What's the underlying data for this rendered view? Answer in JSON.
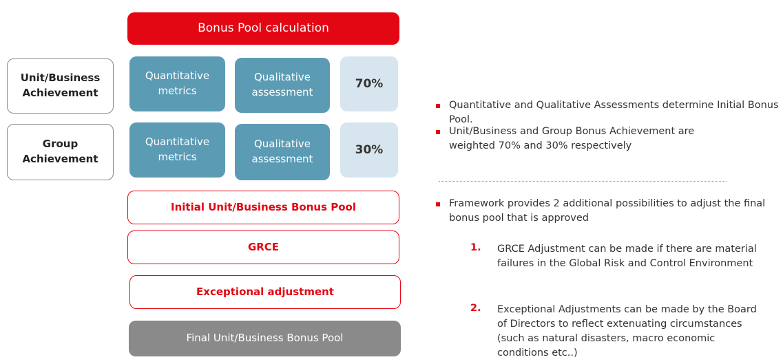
{
  "header": {
    "title": "Bonus Pool calculation"
  },
  "rows": [
    {
      "label": "Unit/Business Achievement",
      "quantitative": "Quantitative metrics",
      "qualitative": "Qualitative assessment",
      "weight": "70%"
    },
    {
      "label": "Group Achievement",
      "quantitative": "Quantitative metrics",
      "qualitative": "Qualitative assessment",
      "weight": "30%"
    }
  ],
  "steps": [
    "Initial Unit/Business Bonus Pool",
    "GRCE",
    "Exceptional adjustment"
  ],
  "final": "Final Unit/Business Bonus Pool",
  "bullets": [
    "Quantitative and Qualitative Assessments determine Initial Bonus Pool.",
    "Unit/Business and Group Bonus Achievement are weighted 70% and 30% respectively",
    "Framework provides 2 additional possibilities to adjust the final bonus pool that is approved"
  ],
  "subitems": [
    {
      "number": "1.",
      "text": "GRCE Adjustment can be made if there are material failures in the  Global Risk and Control Environment"
    },
    {
      "number": "2.",
      "text": "Exceptional Adjustments can be made by the Board of Directors to reflect extenuating circumstances (such as natural disasters, macro economic conditions etc..)"
    }
  ]
}
